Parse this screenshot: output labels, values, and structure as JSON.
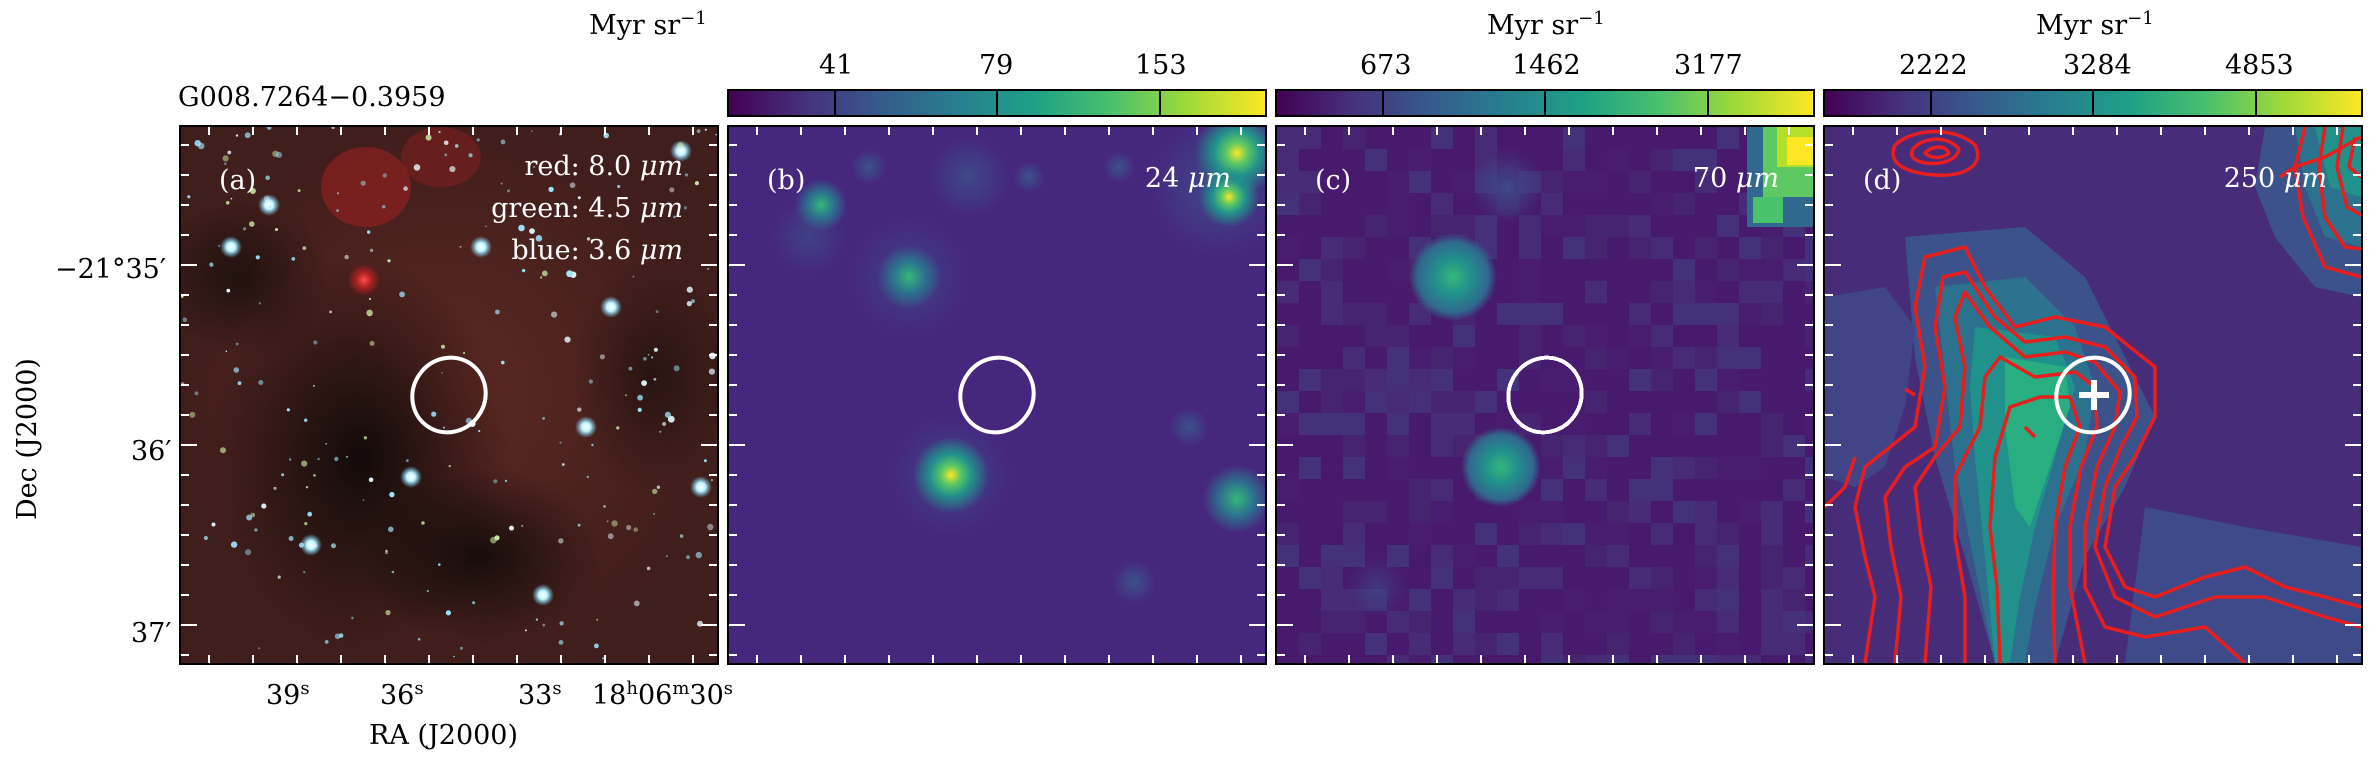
{
  "source_name": "G008.7264−0.3959",
  "axes": {
    "xlabel": "RA (J2000)",
    "ylabel": "Dec (J2000)",
    "x_ticks": [
      "39",
      "36",
      "33",
      "18",
      "06",
      "30"
    ],
    "y_ticks": [
      "−21°35′",
      "36′",
      "37′"
    ]
  },
  "panels": [
    {
      "label": "(a)",
      "band_lines": [
        "red: 8.0",
        "green: 4.5",
        "blue: 3.6"
      ],
      "band_unit": "μm"
    },
    {
      "label": "(b)",
      "band": "24",
      "band_unit": "μm",
      "colorbar": {
        "unit": "Myr sr",
        "exp": "−1",
        "ticks": [
          "41",
          "79",
          "153"
        ]
      }
    },
    {
      "label": "(c)",
      "band": "70",
      "band_unit": "μm",
      "colorbar": {
        "unit": "Myr sr",
        "exp": "−1",
        "ticks": [
          "673",
          "1462",
          "3177"
        ]
      }
    },
    {
      "label": "(d)",
      "band": "250",
      "band_unit": "μm",
      "colorbar": {
        "unit": "Myr sr",
        "exp": "−1",
        "ticks": [
          "2222",
          "3284",
          "4853"
        ]
      }
    }
  ],
  "colors": {
    "colormap": "viridis",
    "contour": "#e81e1e",
    "marker": "#ffffff"
  }
}
